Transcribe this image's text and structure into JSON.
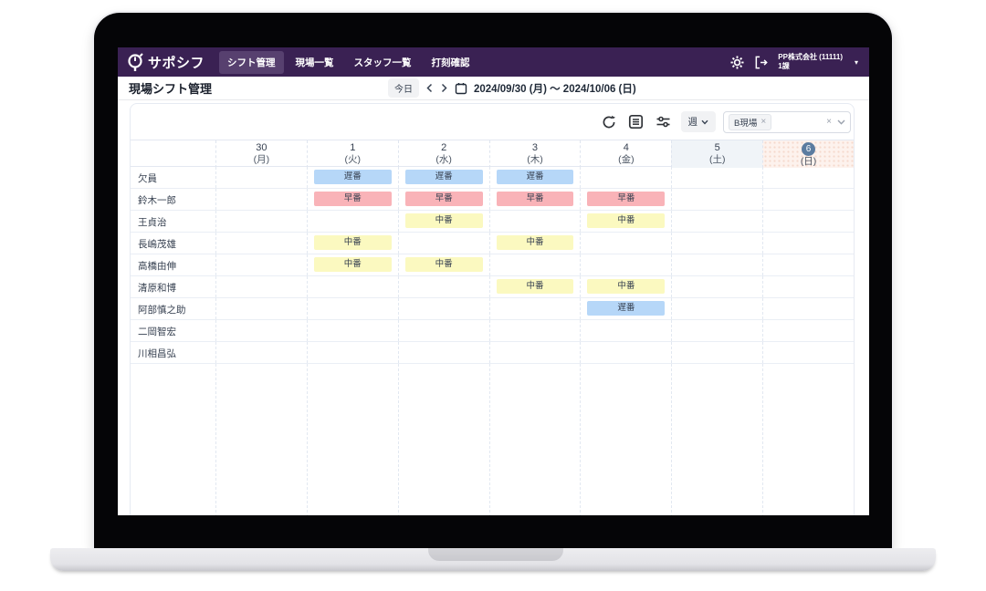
{
  "navbar": {
    "logo_text": "サポシフ",
    "items": [
      {
        "label": "シフト管理",
        "active": true
      },
      {
        "label": "現場一覧",
        "active": false
      },
      {
        "label": "スタッフ一覧",
        "active": false
      },
      {
        "label": "打刻確認",
        "active": false
      }
    ],
    "company_name": "PP株式会社 (11111)",
    "company_unit": "1課",
    "caret": "▾"
  },
  "header": {
    "title": "現場シフト管理",
    "today_label": "今日",
    "date_range": "2024/09/30 (月) ～ 2024/10/06 (日)"
  },
  "toolbar": {
    "period_label": "週",
    "filter_tag": "B現場",
    "tag_remove": "×",
    "clear": "×"
  },
  "schedule": {
    "columns": [
      {
        "day": "30",
        "weekday": "(月)",
        "kind": "weekday"
      },
      {
        "day": "1",
        "weekday": "(火)",
        "kind": "weekday"
      },
      {
        "day": "2",
        "weekday": "(水)",
        "kind": "weekday"
      },
      {
        "day": "3",
        "weekday": "(木)",
        "kind": "weekday"
      },
      {
        "day": "4",
        "weekday": "(金)",
        "kind": "weekday"
      },
      {
        "day": "5",
        "weekday": "(土)",
        "kind": "saturday"
      },
      {
        "day": "6",
        "weekday": "(日)",
        "kind": "sunday",
        "selected": true
      }
    ],
    "shift_types": {
      "early": {
        "label": "早番",
        "bg": "#f9b3b8"
      },
      "mid": {
        "label": "中番",
        "bg": "#fbf9c0"
      },
      "late": {
        "label": "遅番",
        "bg": "#b6d7f8"
      }
    },
    "rows": [
      {
        "name": "欠員",
        "shifts": [
          null,
          "late",
          "late",
          "late",
          null,
          null,
          null
        ]
      },
      {
        "name": "鈴木一郎",
        "shifts": [
          null,
          "early",
          "early",
          "early",
          "early",
          null,
          null
        ]
      },
      {
        "name": "王貞治",
        "shifts": [
          null,
          null,
          "mid",
          null,
          "mid",
          null,
          null
        ]
      },
      {
        "name": "長嶋茂雄",
        "shifts": [
          null,
          "mid",
          null,
          "mid",
          null,
          null,
          null
        ]
      },
      {
        "name": "高橋由伸",
        "shifts": [
          null,
          "mid",
          "mid",
          null,
          null,
          null,
          null
        ]
      },
      {
        "name": "清原和博",
        "shifts": [
          null,
          null,
          null,
          "mid",
          "mid",
          null,
          null
        ]
      },
      {
        "name": "阿部慎之助",
        "shifts": [
          null,
          null,
          null,
          null,
          "late",
          null,
          null
        ]
      },
      {
        "name": "二岡智宏",
        "shifts": [
          null,
          null,
          null,
          null,
          null,
          null,
          null
        ]
      },
      {
        "name": "川相昌弘",
        "shifts": [
          null,
          null,
          null,
          null,
          null,
          null,
          null
        ]
      }
    ]
  },
  "colors": {
    "navbar_bg": "#3a2153",
    "nav_active_bg": "#57406f",
    "badge_bg": "#5b7ca0",
    "saturday_bg": "#f0f4f8",
    "sunday_bg": "#fdf2ed"
  }
}
